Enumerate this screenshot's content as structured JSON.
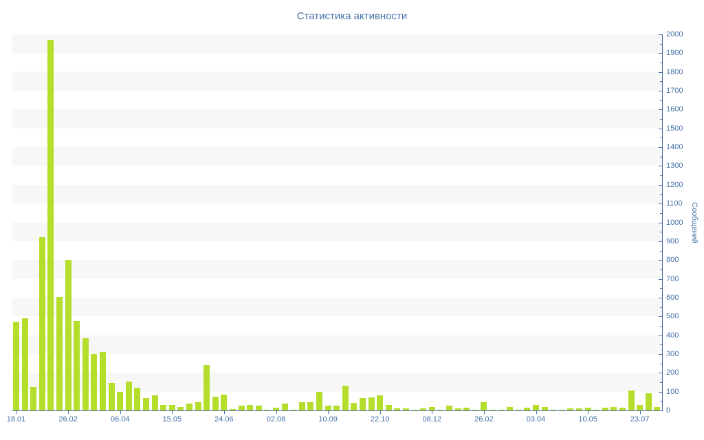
{
  "chart_data": {
    "type": "bar",
    "title": "Статистика активности",
    "ylabel": "Сообщений",
    "xlabel": "",
    "ylim": [
      0,
      2000
    ],
    "y_tick_step": 100,
    "y_minor_tick_step": 50,
    "grid": "horizontal-stripes",
    "legend": "off",
    "x_tick_labels": [
      "18.01",
      "26.02",
      "06.04",
      "15.05",
      "24.06",
      "02.08",
      "10.09",
      "22.10",
      "08.12",
      "26.02",
      "03.04",
      "10.05",
      "23.07"
    ],
    "x_label_every_n_bars": 6,
    "values": [
      470,
      490,
      125,
      920,
      1970,
      605,
      800,
      475,
      385,
      300,
      310,
      145,
      100,
      155,
      120,
      65,
      80,
      30,
      30,
      20,
      35,
      45,
      240,
      75,
      85,
      8,
      25,
      30,
      25,
      5,
      15,
      35,
      5,
      45,
      45,
      100,
      25,
      25,
      130,
      40,
      65,
      70,
      80,
      30,
      10,
      10,
      5,
      10,
      20,
      5,
      25,
      10,
      15,
      5,
      45,
      5,
      5,
      20,
      5,
      15,
      30,
      20,
      5,
      3,
      10,
      10,
      15,
      5,
      15,
      20,
      15,
      105,
      30,
      90,
      20
    ],
    "y_tick_label_values": [
      0,
      100,
      200,
      300,
      400,
      500,
      600,
      700,
      800,
      900,
      1000,
      1100,
      1200,
      1300,
      1400,
      1500,
      1600,
      1700,
      1800,
      1900,
      2000
    ],
    "colors": {
      "bar": "#b4dd2c",
      "text": "#4572a7",
      "axis": "#4a6fa5",
      "stripe": "#f7f7f7",
      "background": "#ffffff"
    }
  }
}
